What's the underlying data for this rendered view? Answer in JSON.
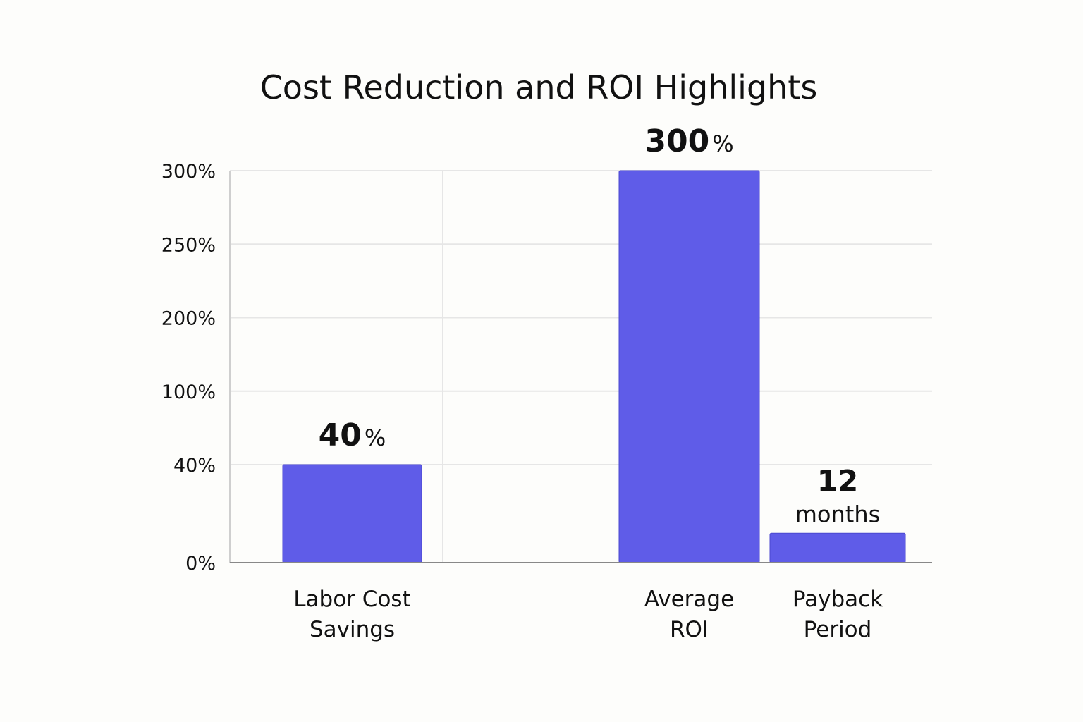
{
  "chart_data": {
    "type": "bar",
    "title": "Cost Reduction and ROI Highlights",
    "categories": [
      "Labor Cost Savings",
      "Average ROI",
      "Payback Period"
    ],
    "values": [
      40,
      300,
      12
    ],
    "value_labels": [
      "40%",
      "300%",
      "12 months"
    ],
    "color": "#5f5ce8",
    "ylim": [
      0,
      300
    ],
    "yticks": [
      {
        "value": 0,
        "label": "0%"
      },
      {
        "value": 40,
        "label": "40%"
      },
      {
        "value": 100,
        "label": "100%"
      },
      {
        "value": 200,
        "label": "200%"
      },
      {
        "value": 250,
        "label": "250%"
      },
      {
        "value": 300,
        "label": "300%"
      }
    ],
    "grid": true
  }
}
